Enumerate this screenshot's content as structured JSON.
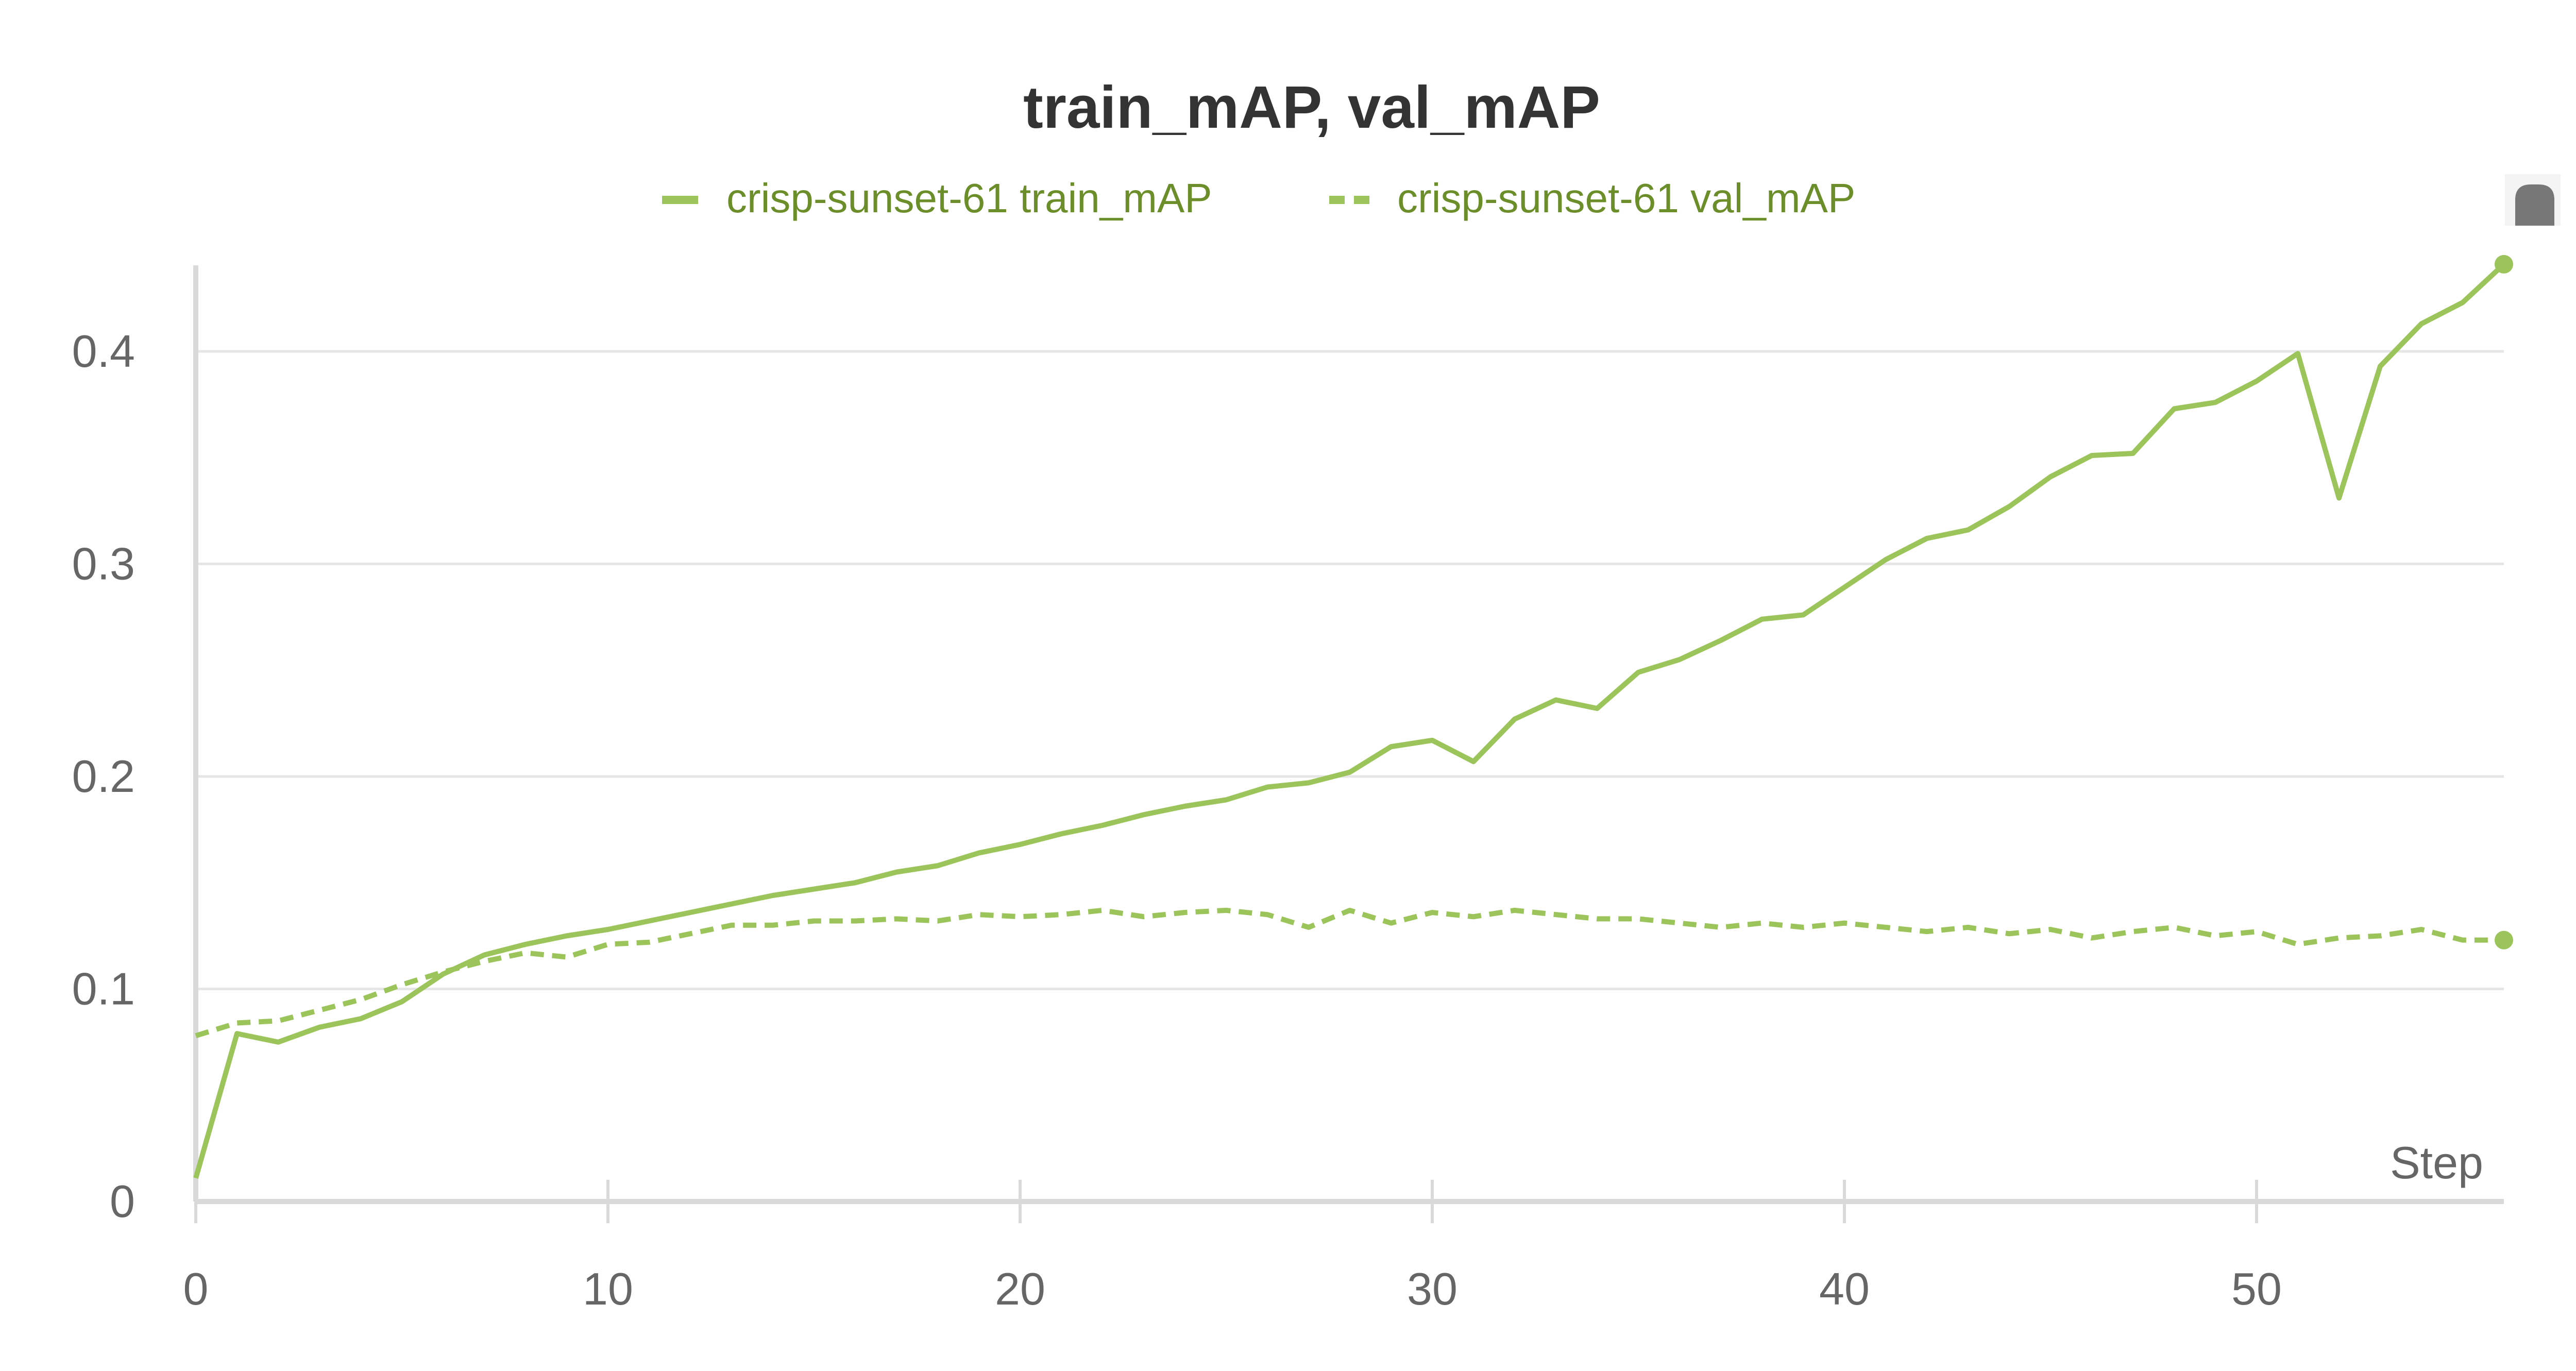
{
  "chart_data": {
    "type": "line",
    "title": "train_mAP, val_mAP",
    "xlabel": "Step",
    "ylabel": "",
    "xlim": [
      0,
      56
    ],
    "ylim": [
      0,
      0.44
    ],
    "x_ticks": [
      "0",
      "10",
      "20",
      "30",
      "40",
      "50"
    ],
    "y_ticks": [
      "0",
      "0.1",
      "0.2",
      "0.3",
      "0.4"
    ],
    "grid": true,
    "legend_position": "top",
    "series": [
      {
        "name": "crisp-sunset-61 train_mAP",
        "style": "solid",
        "color": "#9bc45a",
        "x": [
          0,
          1,
          2,
          3,
          4,
          5,
          6,
          7,
          8,
          9,
          10,
          11,
          12,
          13,
          14,
          15,
          16,
          17,
          18,
          19,
          20,
          21,
          22,
          23,
          24,
          25,
          26,
          27,
          28,
          29,
          30,
          31,
          32,
          33,
          34,
          35,
          36,
          37,
          38,
          39,
          40,
          41,
          42,
          43,
          44,
          45,
          46,
          47,
          48,
          49,
          50,
          51,
          52,
          53,
          54,
          55,
          56
        ],
        "values": [
          0.011,
          0.079,
          0.075,
          0.082,
          0.086,
          0.094,
          0.107,
          0.116,
          0.121,
          0.125,
          0.128,
          0.132,
          0.136,
          0.14,
          0.144,
          0.147,
          0.15,
          0.155,
          0.158,
          0.164,
          0.168,
          0.173,
          0.177,
          0.182,
          0.186,
          0.189,
          0.195,
          0.197,
          0.202,
          0.214,
          0.217,
          0.207,
          0.227,
          0.236,
          0.232,
          0.249,
          0.255,
          0.264,
          0.274,
          0.276,
          0.289,
          0.302,
          0.312,
          0.316,
          0.327,
          0.341,
          0.351,
          0.352,
          0.373,
          0.376,
          0.386,
          0.399,
          0.331,
          0.393,
          0.413,
          0.423,
          0.441
        ]
      },
      {
        "name": "crisp-sunset-61 val_mAP",
        "style": "dashed",
        "color": "#9bc45a",
        "x": [
          0,
          1,
          2,
          3,
          4,
          5,
          6,
          7,
          8,
          9,
          10,
          11,
          12,
          13,
          14,
          15,
          16,
          17,
          18,
          19,
          20,
          21,
          22,
          23,
          24,
          25,
          26,
          27,
          28,
          29,
          30,
          31,
          32,
          33,
          34,
          35,
          36,
          37,
          38,
          39,
          40,
          41,
          42,
          43,
          44,
          45,
          46,
          47,
          48,
          49,
          50,
          51,
          52,
          53,
          54,
          55,
          56
        ],
        "values": [
          0.078,
          0.084,
          0.085,
          0.09,
          0.095,
          0.102,
          0.108,
          0.113,
          0.117,
          0.115,
          0.121,
          0.122,
          0.126,
          0.13,
          0.13,
          0.132,
          0.132,
          0.133,
          0.132,
          0.135,
          0.134,
          0.135,
          0.137,
          0.134,
          0.136,
          0.137,
          0.135,
          0.129,
          0.137,
          0.131,
          0.136,
          0.134,
          0.137,
          0.135,
          0.133,
          0.133,
          0.131,
          0.129,
          0.131,
          0.129,
          0.131,
          0.129,
          0.127,
          0.129,
          0.126,
          0.128,
          0.124,
          0.127,
          0.129,
          0.125,
          0.127,
          0.121,
          0.124,
          0.125,
          0.128,
          0.123,
          0.123
        ]
      }
    ]
  },
  "colors": {
    "series": "#9bc45a",
    "legend_text": "#6b8e2a",
    "title": "#333333",
    "tick_text": "#666666",
    "grid": "#e6e6e6",
    "axis": "#d9d9d9"
  },
  "icons": {
    "corner": "panel-handle-icon"
  }
}
